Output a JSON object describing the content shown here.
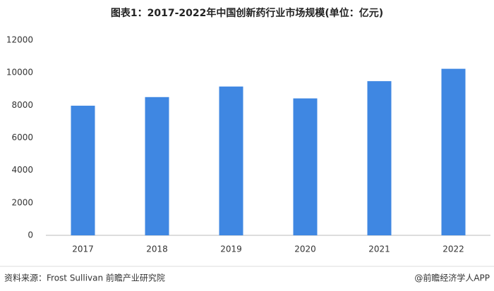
{
  "chart_data": {
    "type": "bar",
    "title": "图表1：2017-2022年中国创新药行业市场规模(单位：亿元)",
    "categories": [
      "2017",
      "2018",
      "2019",
      "2020",
      "2021",
      "2022"
    ],
    "values": [
      7970,
      8500,
      9150,
      8420,
      9480,
      10240
    ],
    "color": "#3f87e2",
    "ylim": [
      0,
      12000
    ],
    "yticks": [
      0,
      2000,
      4000,
      6000,
      8000,
      10000,
      12000
    ],
    "grid": false
  },
  "footer": {
    "source": "资料来源：Frost Sullivan 前瞻产业研究院",
    "credit": "@前瞻经济学人APP"
  }
}
